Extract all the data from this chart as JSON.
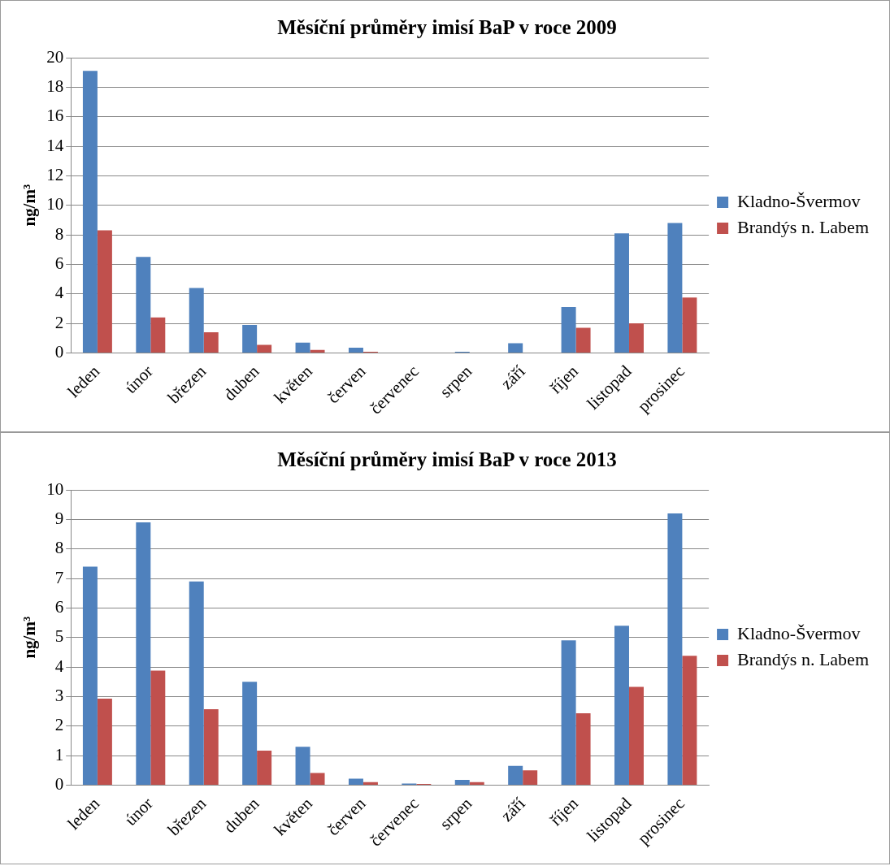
{
  "chart_data": [
    {
      "type": "bar",
      "title": "Měsíční průměry imisí BaP v roce 2009",
      "ylabel": "ng/m³",
      "categories": [
        "leden",
        "únor",
        "březen",
        "duben",
        "květen",
        "červen",
        "červenec",
        "srpen",
        "září",
        "říjen",
        "listopad",
        "prosinec"
      ],
      "series": [
        {
          "name": "Kladno-Švermov",
          "color": "#4f81bd",
          "values": [
            19.1,
            6.5,
            4.4,
            1.9,
            0.7,
            0.35,
            0.02,
            0.08,
            0.65,
            3.1,
            8.1,
            8.8
          ]
        },
        {
          "name": "Brandýs n. Labem",
          "color": "#c0504d",
          "values": [
            8.3,
            2.4,
            1.4,
            0.55,
            0.2,
            0.08,
            null,
            0.02,
            null,
            1.7,
            2.0,
            3.75
          ]
        }
      ],
      "ylim": [
        0,
        20
      ],
      "yticks": [
        0,
        2,
        4,
        6,
        8,
        10,
        12,
        14,
        16,
        18,
        20
      ],
      "grid": "y",
      "legend": "right"
    },
    {
      "type": "bar",
      "title": "Měsíční průměry imisí BaP v roce 2013",
      "ylabel": "ng/m³",
      "categories": [
        "leden",
        "únor",
        "březen",
        "duben",
        "květen",
        "červen",
        "červenec",
        "srpen",
        "září",
        "říjen",
        "listopad",
        "prosinec"
      ],
      "series": [
        {
          "name": "Kladno-Švermov",
          "color": "#4f81bd",
          "values": [
            7.4,
            8.9,
            6.9,
            3.5,
            1.3,
            0.22,
            0.05,
            0.18,
            0.65,
            4.9,
            5.4,
            9.2
          ]
        },
        {
          "name": "Brandýs n. Labem",
          "color": "#c0504d",
          "values": [
            2.93,
            3.88,
            2.57,
            1.17,
            0.41,
            0.1,
            0.04,
            0.1,
            0.5,
            2.43,
            3.33,
            4.38
          ]
        }
      ],
      "ylim": [
        0,
        10
      ],
      "yticks": [
        0,
        1,
        2,
        3,
        4,
        5,
        6,
        7,
        8,
        9,
        10
      ],
      "grid": "y",
      "legend": "right"
    }
  ]
}
